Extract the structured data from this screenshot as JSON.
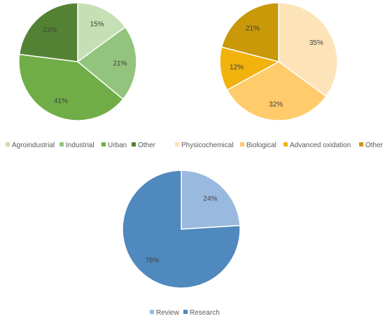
{
  "chart_data": [
    {
      "type": "pie",
      "categories": [
        "Agroindustrial",
        "Industrial",
        "Urban",
        "Other"
      ],
      "values": [
        15,
        21,
        41,
        23
      ],
      "labels": [
        "15%",
        "21%",
        "41%",
        "23%"
      ],
      "colors": [
        "#c5e0b4",
        "#93c47d",
        "#70ad47",
        "#548235"
      ],
      "legend_position": "bottom"
    },
    {
      "type": "pie",
      "categories": [
        "Physicochemical",
        "Biological",
        "Advanced oxidation",
        "Other"
      ],
      "values": [
        35,
        32,
        12,
        21
      ],
      "labels": [
        "35%",
        "32%",
        "12%",
        "21%"
      ],
      "colors": [
        "#fde3b8",
        "#ffcb6b",
        "#f2b20d",
        "#c9990a"
      ],
      "legend_position": "bottom"
    },
    {
      "type": "pie",
      "categories": [
        "Review",
        "Research"
      ],
      "values": [
        24,
        76
      ],
      "labels": [
        "24%",
        "76%"
      ],
      "colors": [
        "#9ab9de",
        "#4f89bd"
      ],
      "legend_position": "bottom"
    }
  ]
}
